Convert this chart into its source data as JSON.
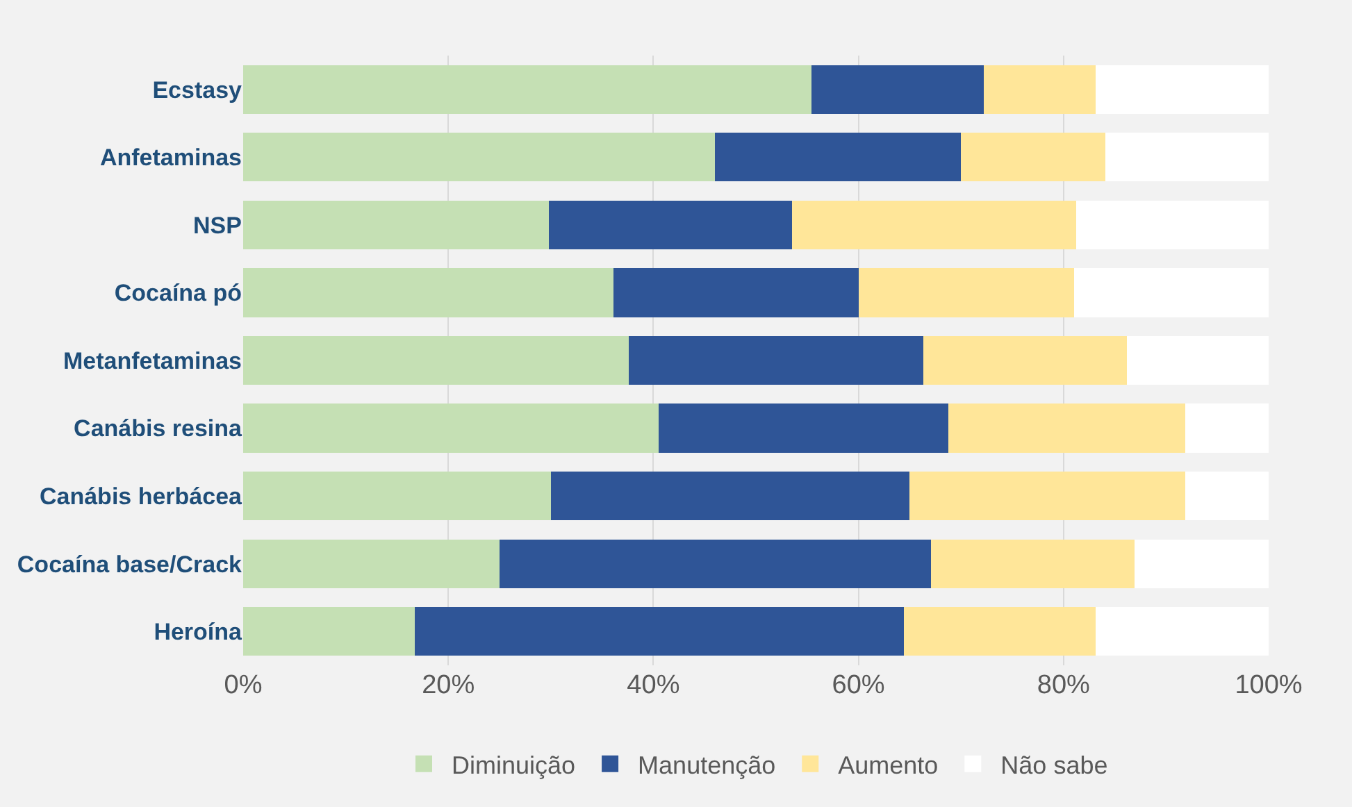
{
  "chart_data": {
    "type": "bar",
    "orientation": "horizontal",
    "stacked": true,
    "categories": [
      "Ecstasy",
      "Anfetaminas",
      "NSP",
      "Cocaína pó",
      "Metanfetaminas",
      "Canábis resina",
      "Canábis herbácea",
      "Cocaína base/Crack",
      "Heroína"
    ],
    "series": [
      {
        "name": "Diminuição",
        "color": "#c5e0b4",
        "values": [
          55.4,
          46.0,
          29.8,
          36.1,
          37.6,
          40.5,
          30.0,
          25.0,
          16.7
        ]
      },
      {
        "name": "Manutenção",
        "color": "#2f5597",
        "values": [
          16.8,
          24.0,
          23.7,
          23.9,
          28.7,
          28.3,
          35.0,
          42.1,
          47.7
        ]
      },
      {
        "name": "Aumento",
        "color": "#ffe699",
        "values": [
          10.9,
          14.1,
          27.7,
          21.0,
          19.9,
          23.1,
          26.9,
          19.8,
          18.7
        ]
      },
      {
        "name": "Não sabe",
        "color": "#ffffff",
        "values": [
          16.9,
          15.9,
          18.8,
          19.0,
          13.8,
          8.1,
          8.1,
          13.1,
          16.9
        ]
      }
    ],
    "xlim": [
      0,
      100
    ],
    "xticks": [
      {
        "value": 0,
        "label": "0%"
      },
      {
        "value": 20,
        "label": "20%"
      },
      {
        "value": 40,
        "label": "40%"
      },
      {
        "value": 60,
        "label": "60%"
      },
      {
        "value": 80,
        "label": "80%"
      },
      {
        "value": 100,
        "label": "100%"
      }
    ],
    "grid": "x",
    "legend": "bottom"
  }
}
